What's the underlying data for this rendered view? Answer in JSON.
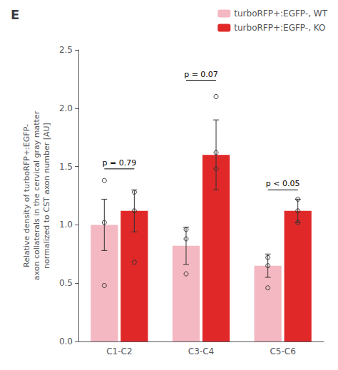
{
  "chart_data": {
    "type": "bar",
    "title": "E",
    "categories": [
      "C1-C2",
      "C3-C4",
      "C5-C6"
    ],
    "series": [
      {
        "name": "turboRFP+:EGFP-, WT",
        "color": "#f4b8c2",
        "values": [
          1.0,
          0.82,
          0.65
        ],
        "errors": [
          0.22,
          0.16,
          0.1
        ],
        "points": [
          [
            0.48,
            1.02,
            1.38
          ],
          [
            0.58,
            0.88,
            0.96
          ],
          [
            0.46,
            0.65,
            0.72
          ]
        ]
      },
      {
        "name": "turboRFP+:EGFP-, KO",
        "color": "#e02828",
        "values": [
          1.12,
          1.6,
          1.12
        ],
        "errors": [
          0.18,
          0.3,
          0.1
        ],
        "points": [
          [
            0.68,
            1.12,
            1.28
          ],
          [
            1.48,
            1.62,
            2.1
          ],
          [
            1.02,
            1.12,
            1.22
          ]
        ]
      }
    ],
    "annotations": [
      {
        "text": "p = 0.79",
        "x": "C1-C2",
        "y": 1.48
      },
      {
        "text": "p = 0.07",
        "x": "C3-C4",
        "y": 2.24
      },
      {
        "text": "p < 0.05",
        "x": "C5-C6",
        "y": 1.3
      }
    ],
    "ylabel": "Relative density of turboRFP+:EGFP-\naxon collaterals in the cervical gray matter\nnormalized to CST axon number [AU]",
    "ylim": [
      0,
      2.5
    ],
    "yticks": [
      {
        "value": 0,
        "label": "0.0"
      },
      0.5,
      {
        "value": 1.0,
        "label": "1.0"
      },
      1.5,
      {
        "value": 2.0,
        "label": "2.0"
      },
      2.5
    ],
    "grid": false,
    "legend": "upper right"
  }
}
